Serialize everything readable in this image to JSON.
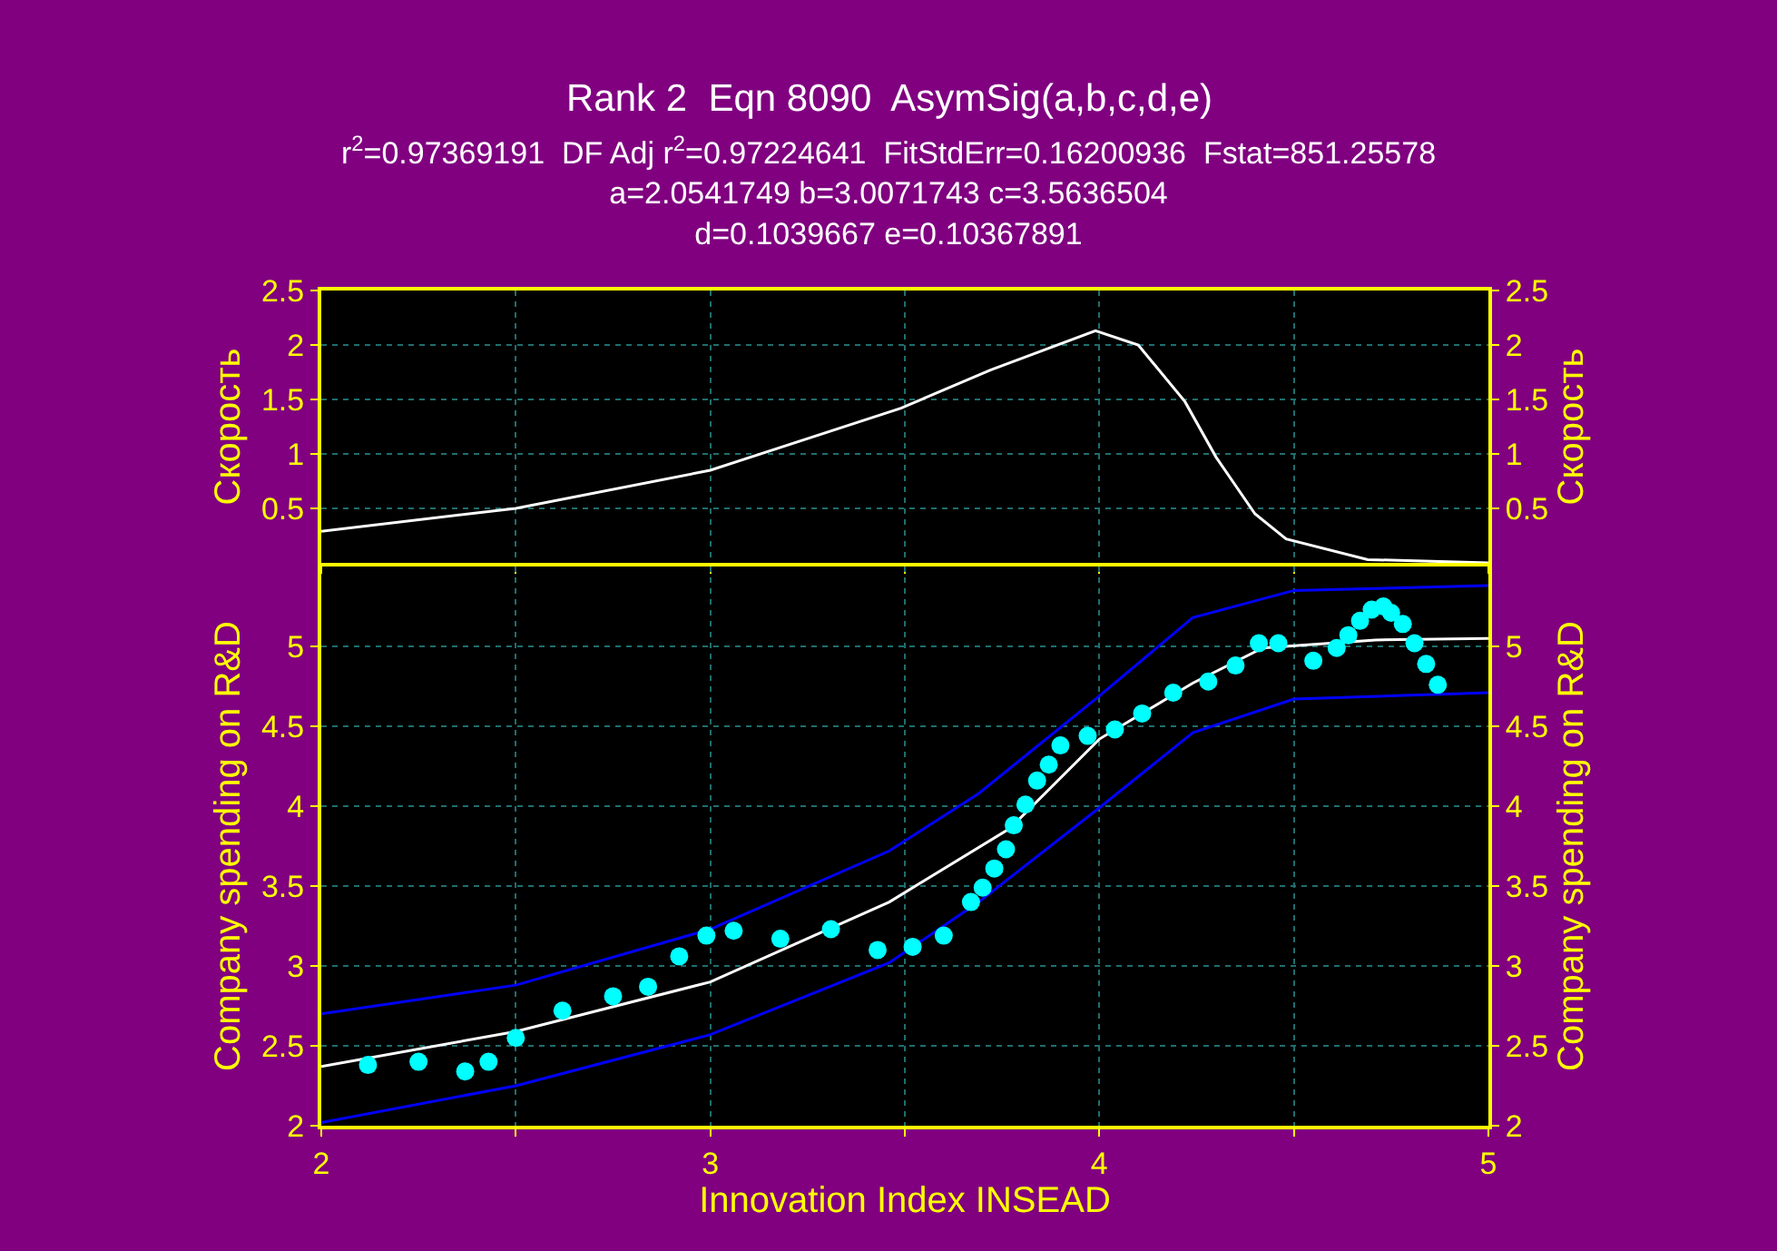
{
  "chart_data": [
    {
      "type": "line",
      "title": "Rank 2  Eqn 8090  AsymSig(a,b,c,d,e)",
      "subtitle": "r$^{2}$=0.97369191  DF Adj r$^{2}$=0.97224641  FitStdErr=0.16200936  Fstat=851.25578\na=2.0541749 b=3.0071743 c=3.5636504\nd=0.1039667 e=0.10367891",
      "ylabel": "Скорость",
      "y2label": "Скорость",
      "xlim": [
        2,
        5
      ],
      "xticks": [
        2,
        {
          "value": 2.5,
          "label": null
        },
        3,
        {
          "value": 3.5,
          "label": null
        },
        4,
        {
          "value": 4.5,
          "label": null
        },
        5
      ],
      "ylim": [
        0,
        2.5
      ],
      "yticks": [
        0.5,
        1,
        1.5,
        2,
        2.5
      ],
      "y2lim": [
        0,
        2.5
      ],
      "y2ticks": [
        0.5,
        1,
        1.5,
        2,
        2.5
      ],
      "tick_labels": "y",
      "grid": true,
      "series": [
        {
          "color": "#ffffff",
          "marker": "none",
          "line_style": "solid",
          "x": [
            2.0,
            2.5,
            3.0,
            3.49,
            3.72,
            3.99,
            4.1,
            4.22,
            4.3,
            4.4,
            4.48,
            4.69,
            5.0
          ],
          "values": [
            0.29,
            0.5,
            0.85,
            1.42,
            1.77,
            2.13,
            2.0,
            1.48,
            0.97,
            0.45,
            0.22,
            0.03,
            0.0
          ]
        }
      ]
    },
    {
      "type": "line",
      "xlabel": "Innovation Index INSEAD",
      "ylabel": "Company spending on R&D",
      "y2label": "Company spending on R&D",
      "xlim": [
        2,
        5
      ],
      "xticks": [
        2,
        {
          "value": 2.5,
          "label": null
        },
        3,
        {
          "value": 3.5,
          "label": null
        },
        4,
        {
          "value": 4.5,
          "label": null
        },
        5
      ],
      "ylim": [
        2,
        5.5
      ],
      "yticks": [
        2,
        2.5,
        3,
        3.5,
        4,
        4.5,
        5
      ],
      "y2lim": [
        2,
        5.5
      ],
      "y2ticks": [
        2,
        2.5,
        3,
        3.5,
        4,
        4.5,
        5
      ],
      "grid": true,
      "series": [
        {
          "color": "#0000ff",
          "marker": "none",
          "line_style": "solid",
          "x": [
            2.0,
            2.5,
            3.0,
            3.46,
            3.69,
            4.0,
            4.24,
            4.5,
            5.0
          ],
          "values": [
            2.7,
            2.88,
            3.23,
            3.72,
            4.08,
            4.69,
            5.18,
            5.35,
            5.38
          ]
        },
        {
          "color": "#0000ff",
          "marker": "none",
          "line_style": "solid",
          "x": [
            2.0,
            2.5,
            3.0,
            3.46,
            3.69,
            4.0,
            4.24,
            4.5,
            5.0
          ],
          "values": [
            2.02,
            2.25,
            2.57,
            3.02,
            3.4,
            3.99,
            4.46,
            4.67,
            4.71
          ]
        },
        {
          "color": "#ffffff",
          "marker": "none",
          "line_style": "solid",
          "x": [
            2.0,
            2.5,
            3.0,
            3.46,
            3.77,
            4.0,
            4.24,
            4.42,
            4.71,
            5.0
          ],
          "values": [
            2.37,
            2.59,
            2.9,
            3.4,
            3.86,
            4.42,
            4.77,
            4.99,
            5.04,
            5.05
          ]
        },
        {
          "type": "scatter",
          "color": "#00ffff",
          "marker": "circle",
          "x": [
            2.12,
            2.25,
            2.37,
            2.43,
            2.5,
            2.62,
            2.75,
            2.84,
            2.92,
            2.99,
            3.06,
            3.18,
            3.31,
            3.43,
            3.52,
            3.6,
            3.67,
            3.7,
            3.73,
            3.76,
            3.78,
            3.81,
            3.84,
            3.87,
            3.9,
            3.97,
            4.04,
            4.11,
            4.19,
            4.28,
            4.35,
            4.41,
            4.46,
            4.55,
            4.61,
            4.64,
            4.67,
            4.7,
            4.73,
            4.75,
            4.78,
            4.81,
            4.84,
            4.87
          ],
          "values": [
            2.38,
            2.4,
            2.34,
            2.4,
            2.55,
            2.72,
            2.81,
            2.87,
            3.06,
            3.19,
            3.22,
            3.17,
            3.23,
            3.1,
            3.12,
            3.19,
            3.4,
            3.49,
            3.61,
            3.73,
            3.88,
            4.01,
            4.16,
            4.26,
            4.38,
            4.44,
            4.48,
            4.58,
            4.71,
            4.78,
            4.88,
            5.02,
            5.02,
            4.91,
            4.99,
            5.07,
            5.16,
            5.23,
            5.25,
            5.21,
            5.14,
            5.02,
            4.89,
            4.76
          ]
        }
      ]
    }
  ]
}
